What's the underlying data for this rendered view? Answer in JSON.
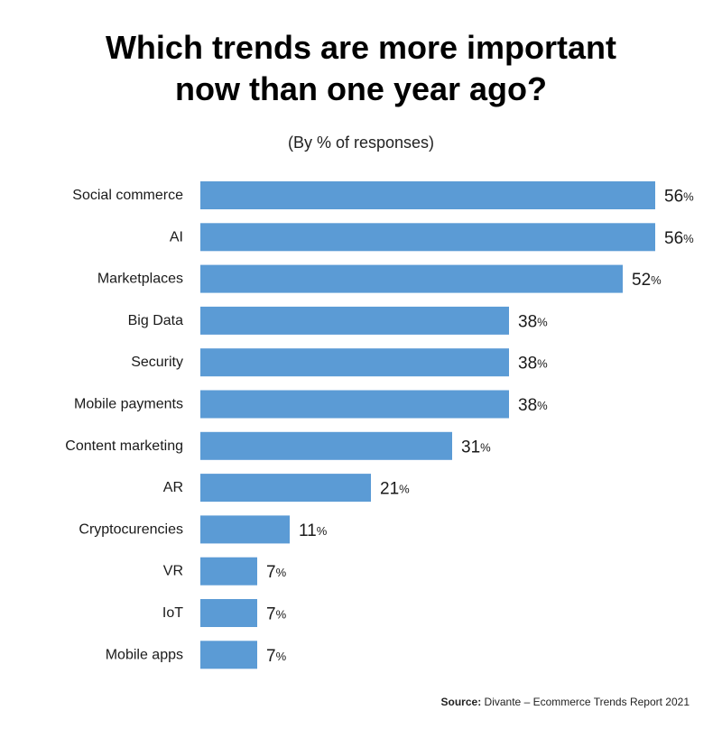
{
  "chart_data": {
    "type": "bar",
    "orientation": "horizontal",
    "title_lines": [
      "Which trends are more important",
      "now than one year ago?"
    ],
    "subtitle": "(By % of responses)",
    "categories": [
      "Social commerce",
      "AI",
      "Marketplaces",
      "Big Data",
      "Security",
      "Mobile payments",
      "Content marketing",
      "AR",
      "Cryptocurencies",
      "VR",
      "IoT",
      "Mobile apps"
    ],
    "values": [
      56,
      56,
      52,
      38,
      38,
      38,
      31,
      21,
      11,
      7,
      7,
      7
    ],
    "value_suffix": "%",
    "xlim": [
      0,
      56
    ],
    "grid": false,
    "bar_color": "#5b9bd5"
  },
  "source": {
    "label": "Source:",
    "text": "Divante – Ecommerce Trends Report 2021"
  }
}
